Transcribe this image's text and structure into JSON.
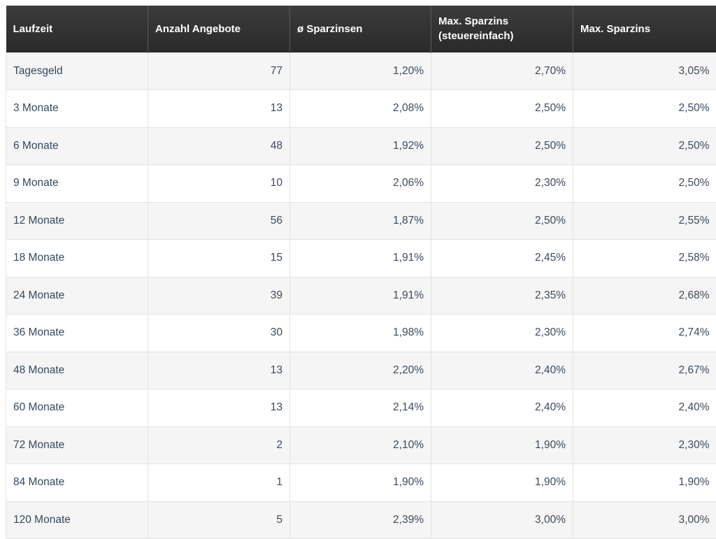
{
  "table": {
    "headers": [
      "Laufzeit",
      "Anzahl Angebote",
      "ø Sparzinsen",
      "Max. Sparzins\n(steuereinfach)",
      "Max. Sparzins"
    ],
    "rows": [
      [
        "Tagesgeld",
        "77",
        "1,20%",
        "2,70%",
        "3,05%"
      ],
      [
        "3 Monate",
        "13",
        "2,08%",
        "2,50%",
        "2,50%"
      ],
      [
        "6 Monate",
        "48",
        "1,92%",
        "2,50%",
        "2,50%"
      ],
      [
        "9 Monate",
        "10",
        "2,06%",
        "2,30%",
        "2,50%"
      ],
      [
        "12 Monate",
        "56",
        "1,87%",
        "2,50%",
        "2,55%"
      ],
      [
        "18 Monate",
        "15",
        "1,91%",
        "2,45%",
        "2,58%"
      ],
      [
        "24 Monate",
        "39",
        "1,91%",
        "2,35%",
        "2,68%"
      ],
      [
        "36 Monate",
        "30",
        "1,98%",
        "2,30%",
        "2,74%"
      ],
      [
        "48 Monate",
        "13",
        "2,20%",
        "2,40%",
        "2,67%"
      ],
      [
        "60 Monate",
        "13",
        "2,14%",
        "2,40%",
        "2,40%"
      ],
      [
        "72 Monate",
        "2",
        "2,10%",
        "1,90%",
        "2,30%"
      ],
      [
        "84 Monate",
        "1",
        "1,90%",
        "1,90%",
        "1,90%"
      ],
      [
        "120 Monate",
        "5",
        "2,39%",
        "3,00%",
        "3,00%"
      ]
    ]
  },
  "colors": {
    "header_bg": "#2f2f2f",
    "row_alt_bg": "#f5f5f5",
    "text": "#3d4a5c"
  }
}
